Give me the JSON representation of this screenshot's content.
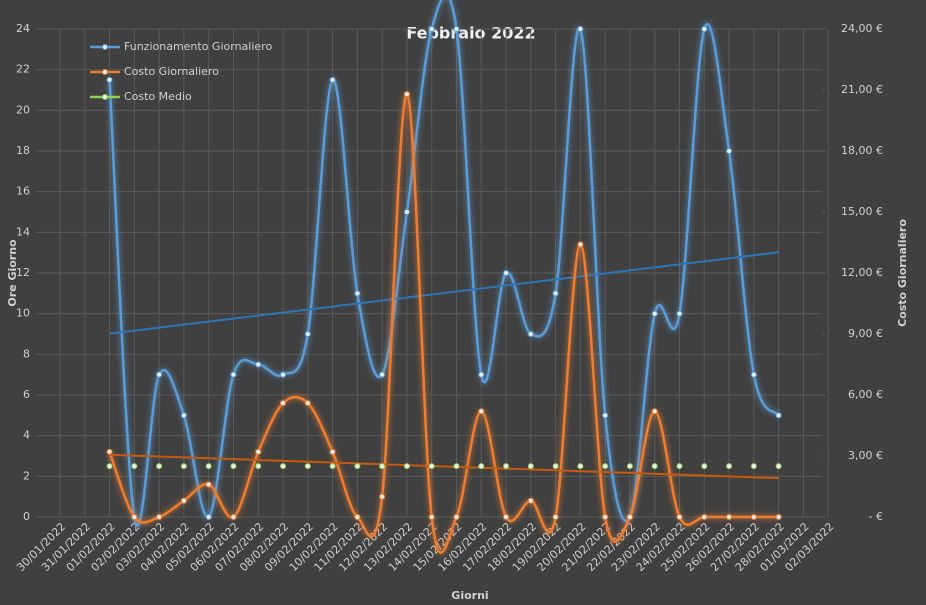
{
  "chart_data": {
    "type": "line",
    "title": "Febbraio 2022",
    "xlabel": "Giorni",
    "ylabel": "Ore Giorno",
    "y2label": "Costo Giornaliero",
    "categories": [
      "30/01/2022",
      "31/01/2022",
      "01/02/2022",
      "02/02/2022",
      "03/02/2022",
      "04/02/2022",
      "05/02/2022",
      "06/02/2022",
      "07/02/2022",
      "08/02/2022",
      "09/02/2022",
      "10/02/2022",
      "11/02/2022",
      "12/02/2022",
      "13/02/2022",
      "14/02/2022",
      "15/02/2022",
      "16/02/2022",
      "17/02/2022",
      "18/02/2022",
      "19/02/2022",
      "20/02/2022",
      "21/02/2022",
      "22/02/2022",
      "23/02/2022",
      "24/02/2022",
      "25/02/2022",
      "26/02/2022",
      "27/02/2022",
      "28/02/2022",
      "01/03/2022",
      "02/03/2022"
    ],
    "series": [
      {
        "name": "Funzionamento Giornaliero",
        "color": "#5b9bd5",
        "axis": "y",
        "trendline": true,
        "trend_color": "#2e75b6",
        "values": [
          null,
          null,
          21.5,
          0,
          7,
          5,
          0,
          7,
          7.5,
          7,
          9,
          21.5,
          11,
          7,
          15,
          24,
          24,
          7,
          12,
          9,
          11,
          24,
          5,
          0,
          10,
          10,
          24,
          18,
          7,
          5,
          null,
          null
        ]
      },
      {
        "name": "Costo Giornaliero",
        "color": "#ed7d31",
        "axis": "y2",
        "trendline": true,
        "trend_color": "#c55a11",
        "values": [
          null,
          null,
          3.2,
          0,
          0,
          0.8,
          1.6,
          0,
          3.2,
          5.6,
          5.6,
          3.2,
          0,
          1,
          20.8,
          0,
          0,
          5.2,
          0,
          0.8,
          0,
          13.4,
          0,
          0,
          5.2,
          0,
          0,
          0,
          0,
          0,
          null,
          null
        ]
      },
      {
        "name": "Costo Medio",
        "color": "#92d050",
        "axis": "y2",
        "trendline": false,
        "values": [
          null,
          null,
          2.5,
          2.5,
          2.5,
          2.5,
          2.5,
          2.5,
          2.5,
          2.5,
          2.5,
          2.5,
          2.5,
          2.5,
          2.5,
          2.5,
          2.5,
          2.5,
          2.5,
          2.5,
          2.5,
          2.5,
          2.5,
          2.5,
          2.5,
          2.5,
          2.5,
          2.5,
          2.5,
          2.5,
          null,
          null
        ]
      }
    ],
    "ylim": [
      0,
      24
    ],
    "yticks": [
      0,
      2,
      4,
      6,
      8,
      10,
      12,
      14,
      16,
      18,
      20,
      22,
      24
    ],
    "y2lim": [
      0,
      24
    ],
    "y2ticks": [
      {
        "value": 0,
        "label": "-   €"
      },
      {
        "value": 3,
        "label": "3,00 €"
      },
      {
        "value": 6,
        "label": "6,00 €"
      },
      {
        "value": 9,
        "label": "9,00 €"
      },
      {
        "value": 12,
        "label": "12,00 €"
      },
      {
        "value": 15,
        "label": "15,00 €"
      },
      {
        "value": 18,
        "label": "18,00 €"
      },
      {
        "value": 21,
        "label": "21,00 €"
      },
      {
        "value": 24,
        "label": "24,00 €"
      }
    ],
    "grid": true,
    "legend": "upper left"
  }
}
